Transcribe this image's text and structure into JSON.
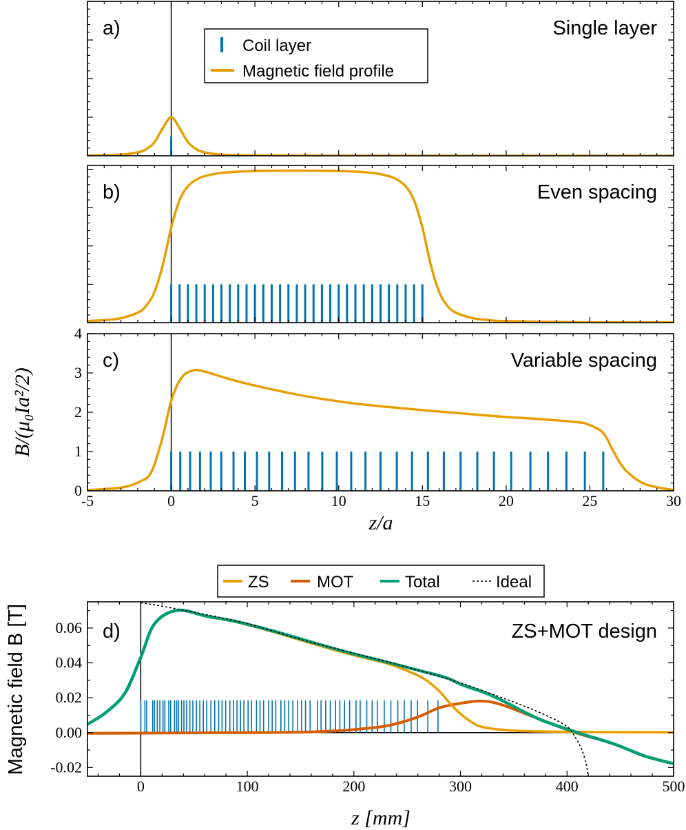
{
  "colors": {
    "field": "#E69F00",
    "coil": "#0072B2",
    "mot": "#D55E00",
    "total": "#009E73",
    "ideal": "#000000"
  },
  "shared_axes_abc": {
    "xlabel": "z/a",
    "ylabel": "B/(μ₀Ia²/2)"
  },
  "chart_data": [
    {
      "type": "line",
      "panel_label": "a)",
      "annotation": "Single layer",
      "xlim": [
        -5,
        30
      ],
      "ylim": [
        0,
        4
      ],
      "xticks_labeled": false,
      "yticks_labeled": false,
      "legend": {
        "placement": "top-center",
        "items": [
          "Coil layer",
          "Magnetic field profile"
        ]
      },
      "coil_height": 0.5,
      "coils": [
        0
      ],
      "field": {
        "x": [
          -5,
          -3,
          -2,
          -1.5,
          -1,
          -0.5,
          0,
          0.5,
          1,
          1.5,
          2,
          3,
          5,
          10,
          30
        ],
        "y": [
          0.0075,
          0.03,
          0.089,
          0.17,
          0.354,
          0.716,
          1,
          0.716,
          0.354,
          0.17,
          0.089,
          0.03,
          0.0075,
          0.001,
          0
        ]
      }
    },
    {
      "type": "line",
      "panel_label": "b)",
      "annotation": "Even spacing",
      "xlim": [
        -5,
        30
      ],
      "ylim": [
        0,
        4.1
      ],
      "xticks_labeled": false,
      "yticks_labeled": false,
      "coil_height": 1,
      "coils": [
        0,
        0.5,
        1,
        1.5,
        2,
        2.5,
        3,
        3.5,
        4,
        4.5,
        5,
        5.5,
        6,
        6.5,
        7,
        7.5,
        8,
        8.5,
        9,
        9.5,
        10,
        10.5,
        11,
        11.5,
        12,
        12.5,
        13,
        13.5,
        14,
        14.5,
        15
      ],
      "field": {
        "x": [
          -5,
          -4,
          -3,
          -2,
          -1.5,
          -1,
          -0.5,
          0,
          0.5,
          1,
          1.5,
          2,
          3,
          5,
          7.5,
          10,
          12,
          13,
          13.5,
          14,
          14.5,
          15,
          15.5,
          16,
          16.5,
          17,
          18,
          19,
          20,
          25,
          30
        ],
        "y": [
          0.04,
          0.065,
          0.117,
          0.26,
          0.435,
          0.8,
          1.51,
          2.48,
          3.195,
          3.557,
          3.73,
          3.82,
          3.905,
          3.955,
          3.966,
          3.955,
          3.905,
          3.82,
          3.73,
          3.557,
          3.195,
          2.48,
          1.51,
          0.8,
          0.435,
          0.26,
          0.117,
          0.065,
          0.04,
          0.009,
          0.004
        ]
      }
    },
    {
      "type": "line",
      "panel_label": "c)",
      "annotation": "Variable spacing",
      "xlim": [
        -5,
        30
      ],
      "ylim": [
        0,
        4
      ],
      "xticks": [
        -5,
        0,
        5,
        10,
        15,
        20,
        25,
        30
      ],
      "yticks": [
        0,
        1,
        2,
        3,
        4
      ],
      "xlabel": "z/a",
      "ylabel": "B/(μ₀Ia²/2)",
      "coil_height": 1,
      "coils": [
        0,
        0.54,
        1.13,
        1.72,
        2.36,
        2.99,
        3.72,
        4.4,
        5.12,
        5.85,
        6.62,
        7.39,
        8.2,
        9.02,
        9.89,
        10.75,
        11.6,
        12.5,
        13.47,
        14.38,
        15.33,
        16.28,
        17.28,
        18.28,
        19.27,
        20.3,
        21.45,
        22.5,
        23.6,
        24.7,
        25.8
      ],
      "field": {
        "x": [
          -5,
          -3,
          -1.9,
          -1.2,
          -0.54,
          0,
          0.6,
          1.27,
          1.95,
          3.76,
          6.03,
          8.3,
          10.6,
          12.8,
          15.1,
          17.4,
          19.6,
          21.9,
          24.2,
          24.9,
          25.8,
          26.4,
          27.1,
          28.3,
          30
        ],
        "y": [
          0.02,
          0.08,
          0.23,
          0.47,
          1.32,
          2.29,
          2.87,
          3.06,
          3.04,
          2.81,
          2.58,
          2.39,
          2.24,
          2.14,
          2.05,
          1.97,
          1.89,
          1.83,
          1.75,
          1.69,
          1.47,
          1.01,
          0.54,
          0.17,
          0.02
        ]
      }
    },
    {
      "type": "line",
      "panel_label": "d)",
      "annotation": "ZS+MOT design",
      "xlim": [
        -50,
        500
      ],
      "ylim": [
        -0.025,
        0.075
      ],
      "xticks": [
        0,
        100,
        200,
        300,
        400,
        500
      ],
      "yticks": [
        -0.02,
        0.0,
        0.02,
        0.04,
        0.06
      ],
      "ytick_labels": [
        "-0.02",
        "0.00",
        "0.02",
        "0.04",
        "0.06"
      ],
      "xlabel": "z [mm]",
      "ylabel": "Magnetic field  B [T]",
      "legend": {
        "placement": "top-outside",
        "items": [
          "ZS",
          "MOT",
          "Total",
          "Ideal"
        ]
      },
      "coil_height": 0.0185,
      "coils": [
        0,
        3.9,
        5.6,
        11.2,
        12.9,
        15.5,
        17.9,
        20.9,
        22.6,
        26.3,
        28,
        31.7,
        33.8,
        35.5,
        38.3,
        40.5,
        43.1,
        46.1,
        48.9,
        52.2,
        55.4,
        58.7,
        61.9,
        65.8,
        69.4,
        73.1,
        76.3,
        79.7,
        83.6,
        87.1,
        90.3,
        93.6,
        96.8,
        100.7,
        103.9,
        108.6,
        111.9,
        115.3,
        120.1,
        123.3,
        126.7,
        131.5,
        135.1,
        138.8,
        142.7,
        147,
        150.9,
        154.6,
        158.9,
        165.8,
        169.2,
        173.5,
        177.8,
        182.8,
        186.8,
        191.2,
        196,
        202,
        205.9,
        212.1,
        217.1,
        222,
        228.5,
        234.7,
        241.2,
        247.2,
        253.7,
        259.7,
        269.4,
        278.9
      ],
      "series": [
        {
          "name": "ZS",
          "x": [
            -50,
            -33,
            -15,
            0,
            13,
            34.5,
            63,
            88,
            124,
            159,
            195,
            231,
            252,
            266,
            280,
            294,
            309,
            323,
            355,
            408,
            500
          ],
          "y": [
            0.0048,
            0.0114,
            0.0225,
            0.0432,
            0.0625,
            0.0701,
            0.0664,
            0.0636,
            0.0578,
            0.0514,
            0.0452,
            0.0397,
            0.0349,
            0.0308,
            0.0239,
            0.0142,
            0.0066,
            0.0029,
            0.001,
            0.0004,
            0.0002
          ]
        },
        {
          "name": "MOT",
          "x": [
            -50,
            0,
            100,
            159,
            195,
            231,
            259,
            280,
            302,
            319,
            337,
            373,
            408,
            444,
            473,
            500
          ],
          "y": [
            -0.0004,
            -0.0003,
            0,
            0.0004,
            0.0015,
            0.0039,
            0.0087,
            0.0142,
            0.017,
            0.0181,
            0.0163,
            0.008,
            0,
            -0.0065,
            -0.0134,
            -0.0178
          ]
        },
        {
          "name": "Total",
          "x": [
            -50,
            -33,
            -15,
            0,
            13,
            34.5,
            63,
            88,
            124,
            159,
            195,
            231,
            266,
            287,
            302,
            330,
            373,
            408,
            444,
            473,
            500
          ],
          "y": [
            0.0048,
            0.0114,
            0.0225,
            0.0432,
            0.0625,
            0.0701,
            0.0666,
            0.0639,
            0.0583,
            0.0521,
            0.0459,
            0.0404,
            0.0349,
            0.0314,
            0.0273,
            0.0211,
            0.008,
            0.0004,
            -0.0065,
            -0.0134,
            -0.0178
          ]
        },
        {
          "name": "Ideal",
          "x": [
            0,
            20,
            50,
            100,
            150,
            200,
            250,
            300,
            350,
            380,
            400,
            408,
            414,
            418,
            420
          ],
          "y": [
            0.0745,
            0.0725,
            0.069,
            0.0625,
            0.0535,
            0.0455,
            0.0375,
            0.0285,
            0.0175,
            0.01,
            0.0035,
            -0.003,
            -0.01,
            -0.018,
            -0.025
          ]
        }
      ]
    }
  ]
}
